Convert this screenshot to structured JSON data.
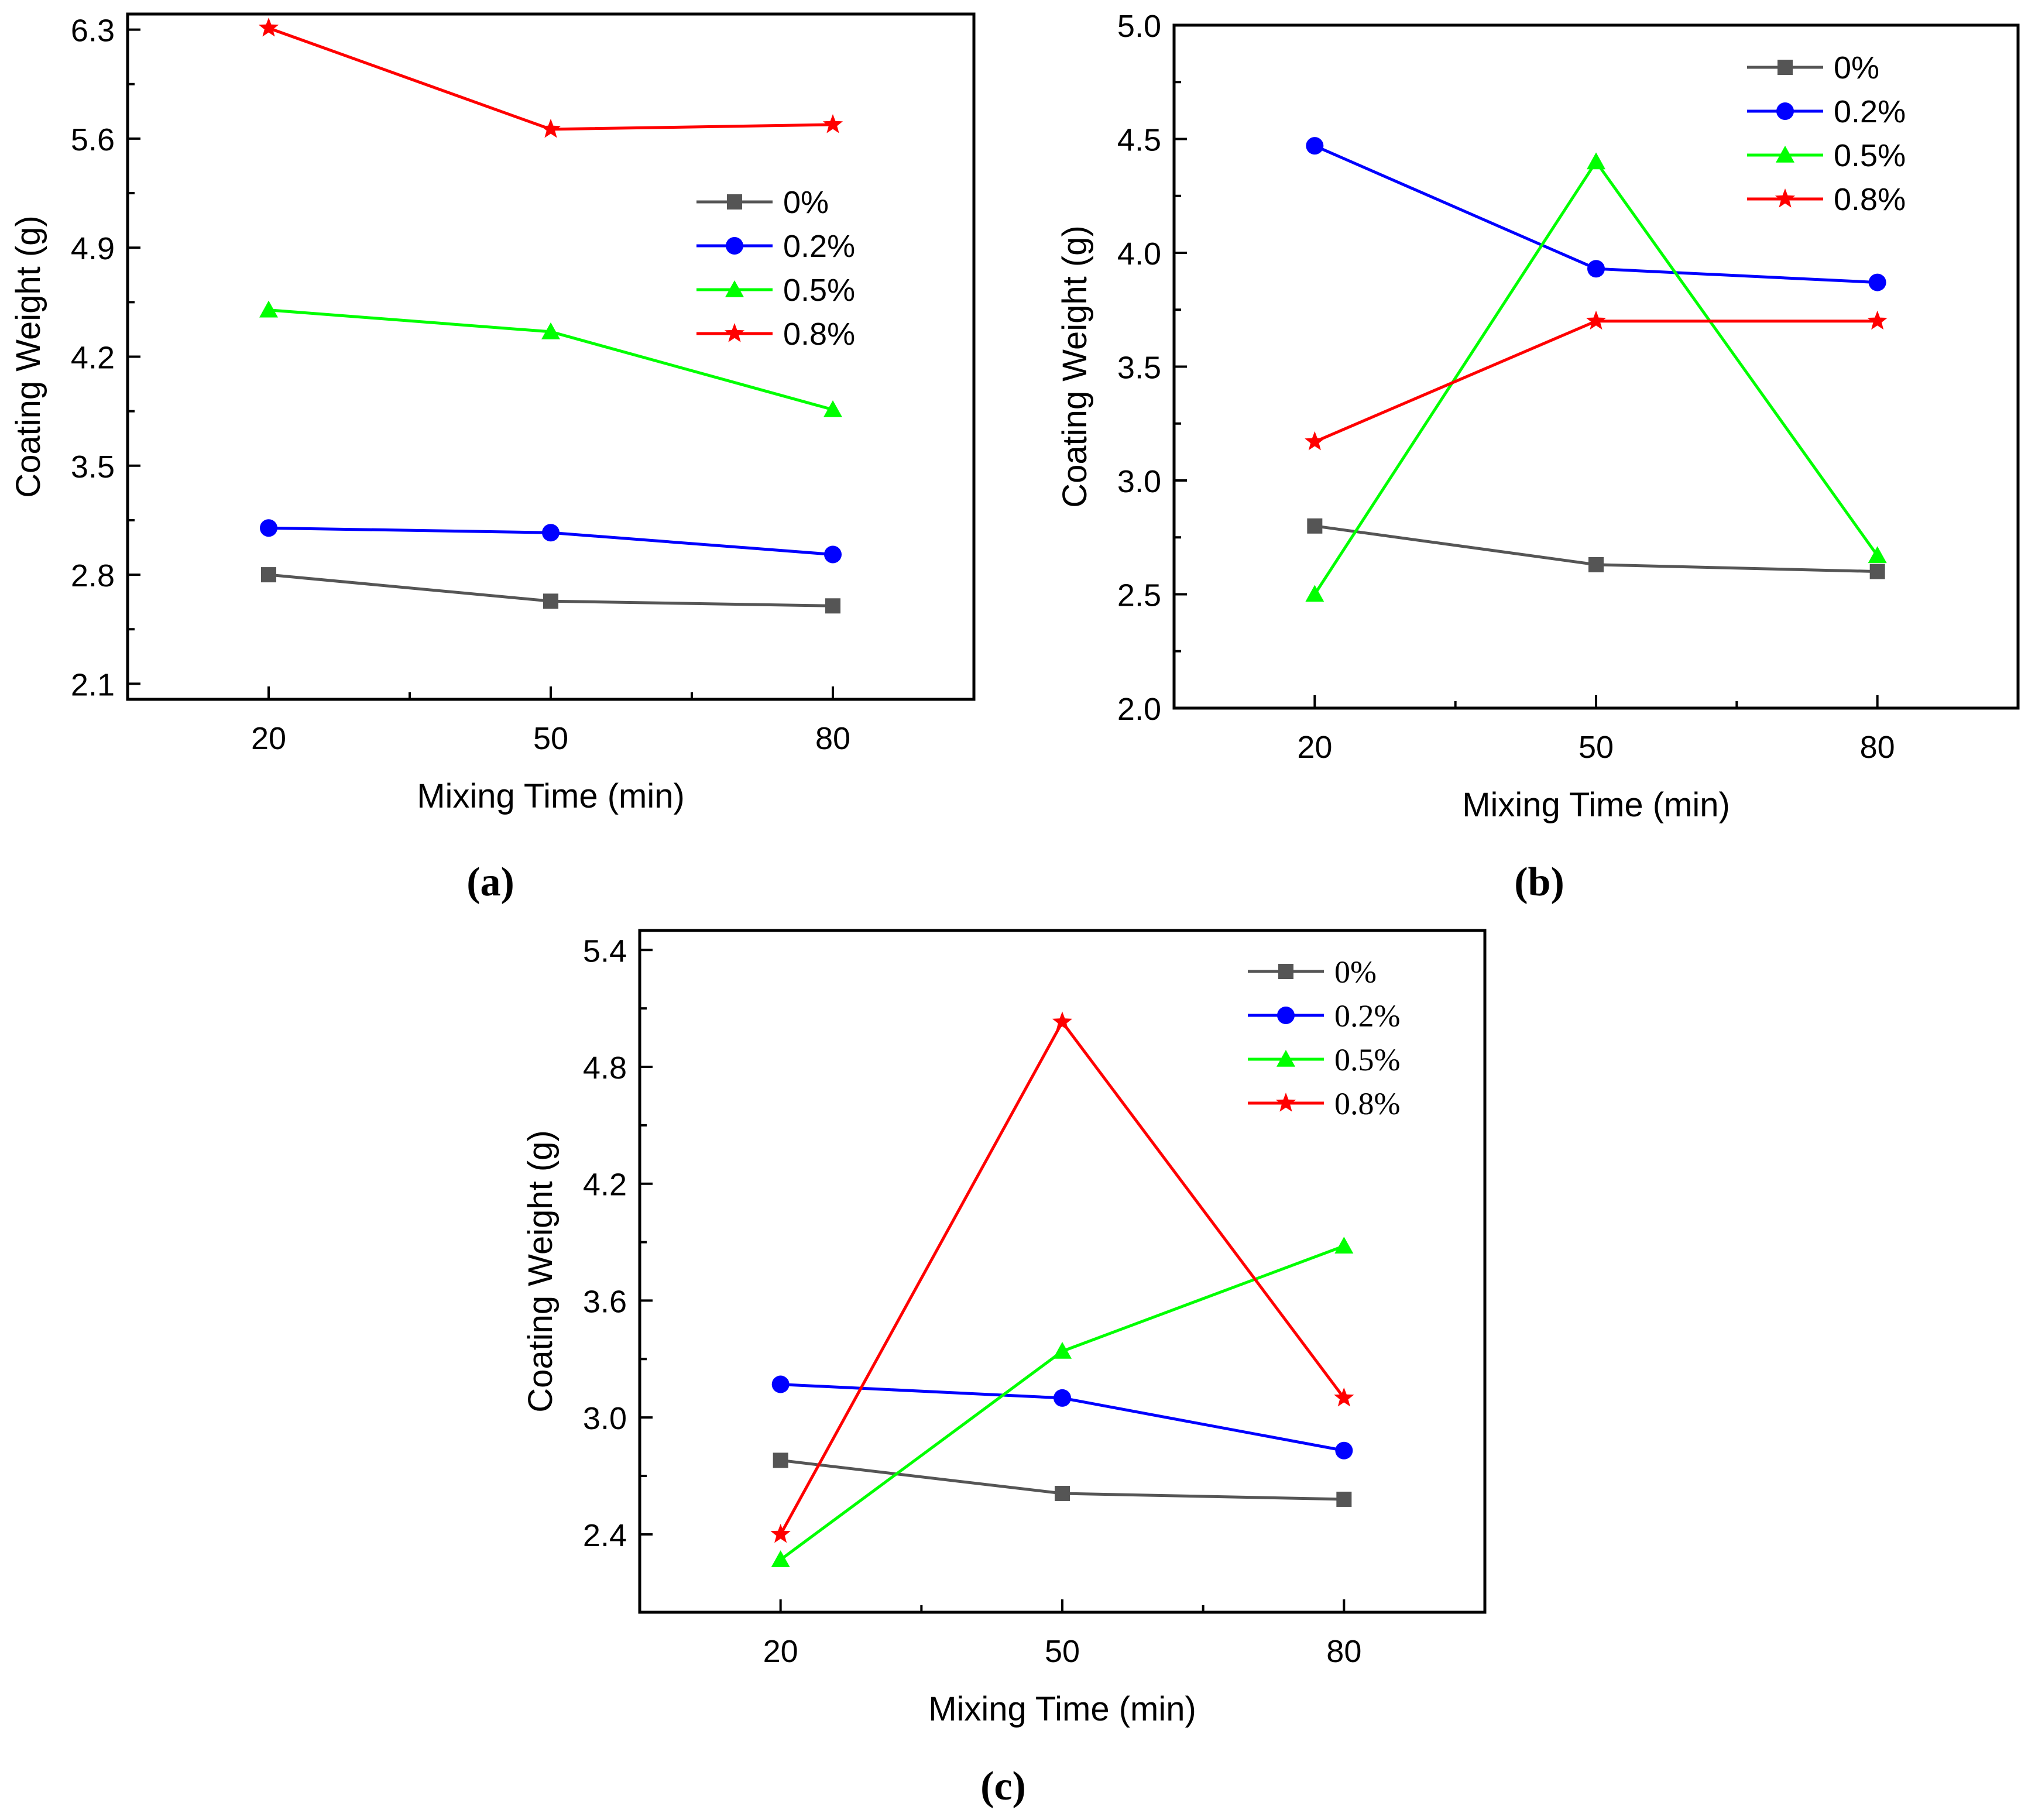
{
  "legend_labels": [
    "0%",
    "0.2%",
    "0.5%",
    "0.8%"
  ],
  "series_colors": [
    "#555555",
    "#0000ff",
    "#00ff00",
    "#ff0000"
  ],
  "series_markers": [
    "square",
    "circle",
    "triangle",
    "star"
  ],
  "chart_data": [
    {
      "type": "line",
      "panel": "(a)",
      "xlabel": "Mixing Time (min)",
      "ylabel": "Coating Weight (g)",
      "x": [
        20,
        50,
        80
      ],
      "xlim": [
        5,
        95
      ],
      "ylim": [
        2.0,
        6.4
      ],
      "yticks": [
        2.1,
        2.8,
        3.5,
        4.2,
        4.9,
        5.6,
        6.3
      ],
      "ytick_labels": [
        "2.1",
        "2.8",
        "3.5",
        "4.2",
        "4.9",
        "5.6",
        "6.3"
      ],
      "xtick_labels": [
        "20",
        "50",
        "80"
      ],
      "legend_position": "right",
      "series": [
        {
          "name": "0%",
          "values": [
            2.8,
            2.63,
            2.6
          ]
        },
        {
          "name": "0.2%",
          "values": [
            3.1,
            3.07,
            2.93
          ]
        },
        {
          "name": "0.5%",
          "values": [
            4.5,
            4.36,
            3.86
          ]
        },
        {
          "name": "0.8%",
          "values": [
            6.31,
            5.66,
            5.69
          ]
        }
      ]
    },
    {
      "type": "line",
      "panel": "(b)",
      "xlabel": "Mixing Time (min)",
      "ylabel": "Coating Weight (g)",
      "x": [
        20,
        50,
        80
      ],
      "xlim": [
        5,
        95
      ],
      "ylim": [
        2.0,
        5.0
      ],
      "yticks": [
        2.0,
        2.5,
        3.0,
        3.5,
        4.0,
        4.5,
        5.0
      ],
      "ytick_labels": [
        "2.0",
        "2.5",
        "3.0",
        "3.5",
        "4.0",
        "4.5",
        "5.0"
      ],
      "xtick_labels": [
        "20",
        "50",
        "80"
      ],
      "legend_position": "top-right",
      "series": [
        {
          "name": "0%",
          "values": [
            2.8,
            2.63,
            2.6
          ]
        },
        {
          "name": "0.2%",
          "values": [
            4.47,
            3.93,
            3.87
          ]
        },
        {
          "name": "0.5%",
          "values": [
            2.5,
            4.4,
            2.67
          ]
        },
        {
          "name": "0.8%",
          "values": [
            3.17,
            3.7,
            3.7
          ]
        }
      ]
    },
    {
      "type": "line",
      "panel": "(c)",
      "xlabel": "Mixing Time (min)",
      "ylabel": "Coating Weight (g)",
      "x": [
        20,
        50,
        80
      ],
      "xlim": [
        5,
        95
      ],
      "ylim": [
        2.0,
        5.5
      ],
      "yticks": [
        2.4,
        3.0,
        3.6,
        4.2,
        4.8,
        5.4
      ],
      "ytick_labels": [
        "2.4",
        "3.0",
        "3.6",
        "4.2",
        "4.8",
        "5.4"
      ],
      "xtick_labels": [
        "20",
        "50",
        "80"
      ],
      "legend_position": "top-right",
      "series": [
        {
          "name": "0%",
          "values": [
            2.78,
            2.61,
            2.58
          ]
        },
        {
          "name": "0.2%",
          "values": [
            3.17,
            3.1,
            2.83
          ]
        },
        {
          "name": "0.5%",
          "values": [
            2.27,
            3.34,
            3.88
          ]
        },
        {
          "name": "0.8%",
          "values": [
            2.4,
            5.03,
            3.1
          ]
        }
      ]
    }
  ]
}
